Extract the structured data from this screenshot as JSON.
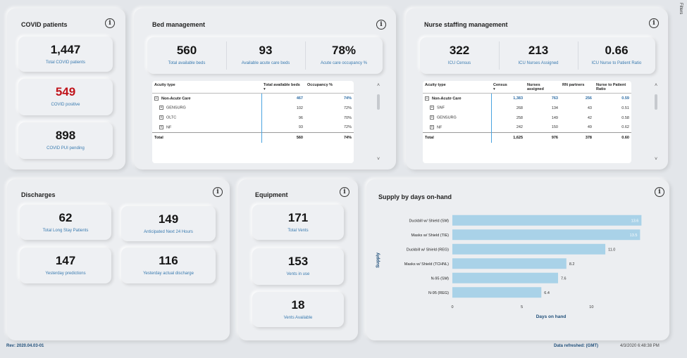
{
  "covid": {
    "title": "COVID patients",
    "cards": [
      {
        "value": "1,447",
        "label": "Total COVID patients"
      },
      {
        "value": "549",
        "label": "COVID positive"
      },
      {
        "value": "898",
        "label": "COVID PUI pending"
      }
    ]
  },
  "beds": {
    "title": "Bed management",
    "kpis": [
      {
        "value": "560",
        "label": "Total available beds"
      },
      {
        "value": "93",
        "label": "Available acute care beds"
      },
      {
        "value": "78%",
        "label": "Acute care occupancy %"
      }
    ],
    "headers": [
      "Acuity type",
      "Total available beds",
      "Occupancy %"
    ],
    "rows": [
      {
        "name": "Non-Acute Care",
        "beds": "467",
        "occ": "74%",
        "group": true
      },
      {
        "name": "GENSURG",
        "beds": "102",
        "occ": "72%"
      },
      {
        "name": "OLTC",
        "beds": "96",
        "occ": "70%"
      },
      {
        "name": "NF",
        "beds": "93",
        "occ": "72%"
      }
    ],
    "total": {
      "name": "Total",
      "beds": "560",
      "occ": "74%"
    }
  },
  "nurse": {
    "title": "Nurse staffing management",
    "kpis": [
      {
        "value": "322",
        "label": "ICU Census"
      },
      {
        "value": "213",
        "label": "ICU Nurses Assigned"
      },
      {
        "value": "0.66",
        "label": "ICU Nurse to Patient Ratio"
      }
    ],
    "headers": [
      "Acuity type",
      "Census",
      "Nurses assigned",
      "RN partners",
      "Nurse to Patient Ratio"
    ],
    "rows": [
      {
        "name": "Non-Acute Care",
        "census": "1,383",
        "nurses": "763",
        "rn": "256",
        "ratio": "0.59",
        "group": true
      },
      {
        "name": "SNF",
        "census": "268",
        "nurses": "134",
        "rn": "43",
        "ratio": "0.51"
      },
      {
        "name": "GENSURG",
        "census": "258",
        "nurses": "149",
        "rn": "42",
        "ratio": "0.58"
      },
      {
        "name": "NF",
        "census": "242",
        "nurses": "150",
        "rn": "49",
        "ratio": "0.62"
      }
    ],
    "total": {
      "name": "Total",
      "census": "1,625",
      "nurses": "976",
      "rn": "378",
      "ratio": "0.60"
    }
  },
  "discharges": {
    "title": "Discharges",
    "cards": [
      {
        "value": "62",
        "label": "Total Long Stay Patients"
      },
      {
        "value": "149",
        "label": "Anticipated Next 24 Hours"
      },
      {
        "value": "147",
        "label": "Yesterday predictions"
      },
      {
        "value": "116",
        "label": "Yesterday actual discharge"
      }
    ]
  },
  "equipment": {
    "title": "Equipment",
    "cards": [
      {
        "value": "171",
        "label": "Total Vents"
      },
      {
        "value": "153",
        "label": "Vents in use"
      },
      {
        "value": "18",
        "label": "Vents Available"
      }
    ]
  },
  "supply": {
    "title": "Supply by days on-hand"
  },
  "chart_data": {
    "type": "bar",
    "orientation": "horizontal",
    "title": "Supply by days on-hand",
    "xlabel": "Days on hand",
    "ylabel": "Supply",
    "categories": [
      "Duckbill w/ Shield (SM)",
      "Masks w/ Shield (TIE)",
      "Duckbill w/ Shield (REG)",
      "Masks w/ Shield (TCHNL)",
      "N-95 (SM)",
      "N-95 (REG)"
    ],
    "values": [
      13.6,
      13.5,
      11.0,
      8.2,
      7.6,
      6.4
    ],
    "value_labels": [
      "13.6",
      "13.5",
      "11.0",
      "8.2",
      "7.6",
      "6.4"
    ],
    "xticks": [
      0,
      5,
      10
    ],
    "xlim": [
      0,
      15
    ],
    "bar_color": "#a9d2e8"
  },
  "footer": {
    "rev": "Rev: 2020.04.03-01",
    "refreshed_label": "Data refreshed: (GMT)",
    "refreshed_ts": "4/3/2020 6:48:38 PM"
  },
  "filters_label": "Filters",
  "info_glyph": "i",
  "table_glyphs": {
    "expand": "+",
    "collapse": "−",
    "sort": "▾",
    "scroll_up": "˄",
    "scroll_down": "˅"
  }
}
